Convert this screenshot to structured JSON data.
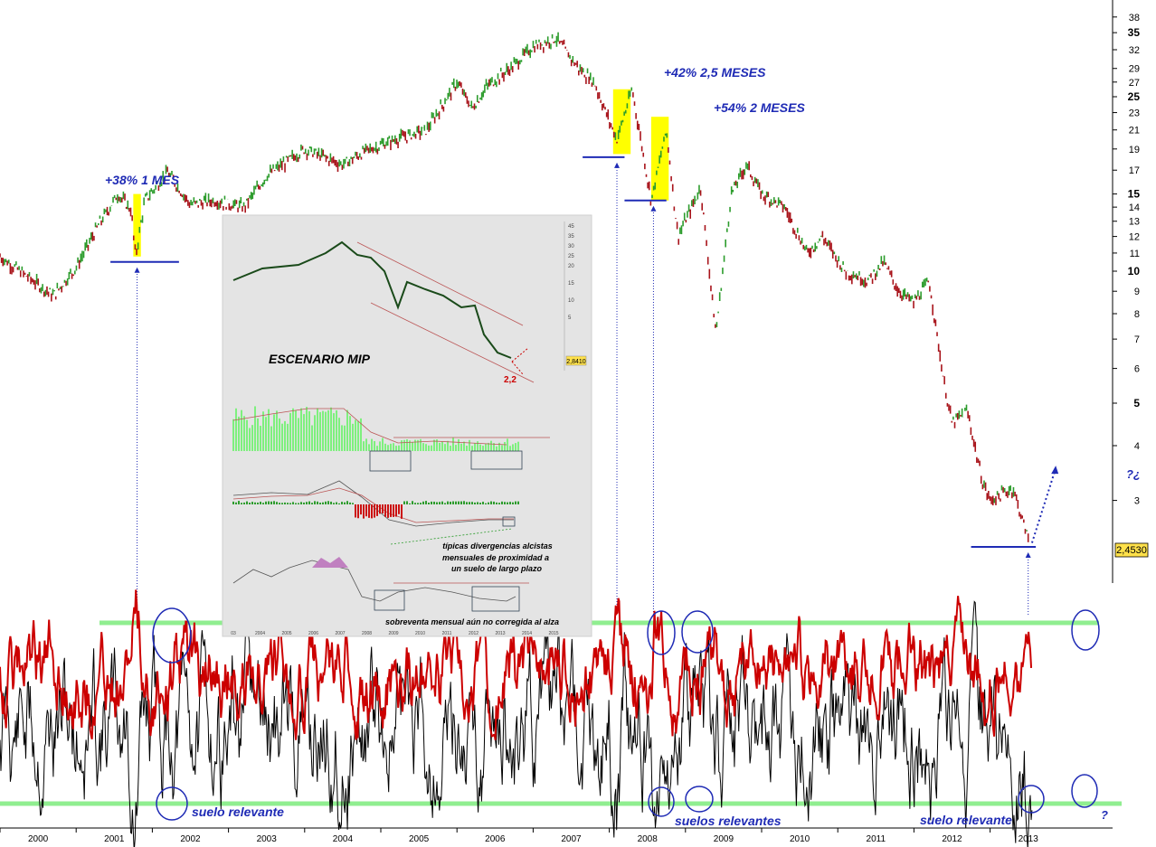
{
  "chart_data": [
    {
      "type": "line",
      "scale": "log",
      "y_ticks": [
        "38",
        "35",
        "32",
        "29",
        "27",
        "25",
        "23",
        "21",
        "19",
        "17",
        "15",
        "14",
        "13",
        "12",
        "11",
        "10",
        "9",
        "8",
        "7",
        "6",
        "5",
        "4",
        "3"
      ],
      "y_ticks_bold": [
        "35",
        "25",
        "15",
        "10",
        "5"
      ],
      "x_ticks": [
        "2000",
        "2001",
        "2002",
        "2003",
        "2004",
        "2005",
        "2006",
        "2007",
        "2008",
        "2009",
        "2010",
        "2011",
        "2012",
        "2013"
      ],
      "last_value_label": "2,4530",
      "series": [
        {
          "color": "#2c9c2c",
          "x": [
            2000.0,
            2000.4,
            2000.7,
            2001.0,
            2001.3,
            2001.55,
            2001.72,
            2001.78,
            2001.9,
            2002.2,
            2002.5,
            2002.8,
            2003.2,
            2003.5,
            2004.0,
            2004.5,
            2004.8,
            2005.2,
            2005.6,
            2006.0,
            2006.2,
            2006.4,
            2006.7,
            2007.0,
            2007.3,
            2007.6,
            2007.8,
            2008.0,
            2008.1,
            2008.3,
            2008.55,
            2008.75,
            2008.9,
            2009.2,
            2009.4,
            2009.6,
            2009.8,
            2010.0,
            2010.3,
            2010.6,
            2010.8,
            2011.1,
            2011.4,
            2011.6,
            2011.8,
            2012.0,
            2012.2,
            2012.4,
            2012.5,
            2012.7,
            2012.9,
            2013.0,
            2013.3,
            2013.5
          ],
          "y": [
            10.8,
            9.6,
            8.8,
            10.2,
            12.8,
            15.0,
            13.8,
            10.8,
            14.5,
            16.8,
            14.2,
            14.5,
            14.0,
            16.5,
            19.0,
            17.5,
            18.8,
            20.0,
            21.0,
            27.0,
            23.5,
            26.5,
            29.0,
            32.5,
            34.0,
            29.0,
            27.0,
            22.0,
            20.0,
            26.0,
            14.5,
            21.0,
            12.0,
            15.5,
            7.2,
            15.0,
            17.5,
            15.0,
            14.0,
            11.0,
            12.0,
            10.0,
            9.5,
            10.5,
            9.0,
            8.5,
            9.5,
            5.5,
            4.5,
            4.8,
            3.3,
            3.0,
            3.2,
            2.453
          ]
        }
      ],
      "annotations": [
        "+38% 1 MES",
        "+42% 2,5 MESES",
        "+54% 2 MESES",
        "?¿"
      ],
      "highlights": [
        {
          "x_start": 2001.75,
          "x_end": 2001.85,
          "y_low": 10.8,
          "y_high": 15.0,
          "color": "#ffff00"
        },
        {
          "x_start": 2008.05,
          "x_end": 2008.28,
          "y_low": 18.5,
          "y_high": 26.0,
          "color": "#ffff00"
        },
        {
          "x_start": 2008.55,
          "x_end": 2008.78,
          "y_low": 14.5,
          "y_high": 22.5,
          "color": "#ffff00"
        }
      ],
      "support_lines": [
        10.5,
        18.2,
        14.5,
        2.35
      ]
    },
    {
      "type": "line",
      "series": [
        {
          "color": "#cc0000"
        },
        {
          "color": "#000000"
        }
      ],
      "x_ticks": [
        "2000",
        "2001",
        "2002",
        "2003",
        "2004",
        "2005",
        "2006",
        "2007",
        "2008",
        "2009",
        "2010",
        "2011",
        "2012",
        "2013"
      ],
      "guide_lines": [
        "upper",
        "lower"
      ],
      "guide_color": "#90ee90",
      "annotations": [
        "suelo relevante",
        "suelos relevantes",
        "suelo relevante",
        "?"
      ]
    },
    {
      "type": "line",
      "title": "ESCENARIO MIP",
      "y_ticks": [
        "45",
        "35",
        "30",
        "25",
        "20",
        "15",
        "10",
        "5"
      ],
      "last_value_label": "2,8410",
      "target_label": "2,2",
      "x_ticks": [
        "03",
        "2004",
        "2005",
        "2006",
        "2007",
        "2008",
        "2009",
        "2010",
        "2011",
        "2012",
        "2013",
        "2014",
        "2015"
      ],
      "notes": [
        "típicas divergencias alcistas",
        "mensuales de proximidad a",
        "un suelo de largo plazo",
        "sobreventa mensual aún no corregida al alza"
      ]
    }
  ]
}
